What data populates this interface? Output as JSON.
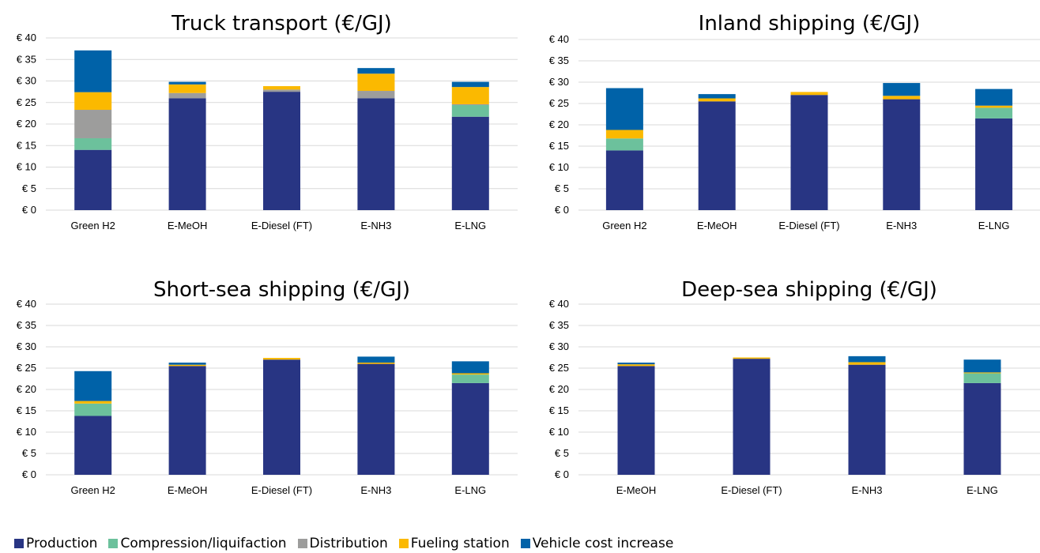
{
  "colors": {
    "Production": "#283583",
    "Compression/liquifaction": "#6cc19c",
    "Distribution": "#9d9d9c",
    "Fueling station": "#fbb900",
    "Vehicle cost increase": "#0062a8",
    "axis": "#d9d9d9"
  },
  "legend": {
    "items": [
      {
        "label": "Production",
        "color": "#283583"
      },
      {
        "label": "Compression/liquifaction",
        "color": "#6cc19c"
      },
      {
        "label": "Distribution",
        "color": "#9d9d9c"
      },
      {
        "label": "Fueling station",
        "color": "#fbb900"
      },
      {
        "label": "Vehicle cost increase",
        "color": "#0062a8"
      }
    ]
  },
  "chart_data": [
    {
      "type": "bar",
      "stacked": true,
      "title": "Truck transport (€/GJ)",
      "categories": [
        "Green H2",
        "E-MeOH",
        "E-Diesel (FT)",
        "E-NH3",
        "E-LNG"
      ],
      "ylim": [
        0,
        40
      ],
      "yticks": [
        "€ 0",
        "€ 5",
        "€ 10",
        "€ 15",
        "€ 20",
        "€ 25",
        "€ 30",
        "€ 35",
        "€ 40"
      ],
      "grid": true,
      "series": [
        {
          "name": "Production",
          "values": [
            14,
            26,
            27.5,
            26,
            21.7
          ]
        },
        {
          "name": "Compression/liquifaction",
          "values": [
            2.7,
            0,
            0,
            0,
            2.7
          ]
        },
        {
          "name": "Distribution",
          "values": [
            6.6,
            1.2,
            0.5,
            1.7,
            0.2
          ]
        },
        {
          "name": "Fueling station",
          "values": [
            4.1,
            2,
            0.8,
            4,
            4
          ]
        },
        {
          "name": "Vehicle cost increase",
          "values": [
            9.7,
            0.6,
            0,
            1.3,
            1.2
          ]
        }
      ]
    },
    {
      "type": "bar",
      "stacked": true,
      "title": "Inland shipping (€/GJ)",
      "categories": [
        "Green H2",
        "E-MeOH",
        "E-Diesel (FT)",
        "E-NH3",
        "E-LNG"
      ],
      "ylim": [
        0,
        40
      ],
      "yticks": [
        "€ 0",
        "€ 5",
        "€ 10",
        "€ 15",
        "€ 20",
        "€ 25",
        "€ 30",
        "€ 35",
        "€ 40"
      ],
      "grid": true,
      "series": [
        {
          "name": "Production",
          "values": [
            14,
            25.5,
            27,
            26,
            21.5
          ]
        },
        {
          "name": "Compression/liquifaction",
          "values": [
            2.8,
            0,
            0,
            0,
            2.5
          ]
        },
        {
          "name": "Distribution",
          "values": [
            0,
            0,
            0,
            0,
            0
          ]
        },
        {
          "name": "Fueling station",
          "values": [
            2,
            0.7,
            0.7,
            0.8,
            0.5
          ]
        },
        {
          "name": "Vehicle cost increase",
          "values": [
            9.8,
            1,
            0,
            3,
            3.9
          ]
        }
      ]
    },
    {
      "type": "bar",
      "stacked": true,
      "title": "Short-sea shipping (€/GJ)",
      "categories": [
        "Green H2",
        "E-MeOH",
        "E-Diesel (FT)",
        "E-NH3",
        "E-LNG"
      ],
      "ylim": [
        0,
        40
      ],
      "yticks": [
        "€ 0",
        "€ 5",
        "€ 10",
        "€ 15",
        "€ 20",
        "€ 25",
        "€ 30",
        "€ 35",
        "€ 40"
      ],
      "grid": true,
      "series": [
        {
          "name": "Production",
          "values": [
            13.8,
            25.5,
            27,
            26,
            21.5
          ]
        },
        {
          "name": "Compression/liquifaction",
          "values": [
            2.9,
            0,
            0,
            0,
            2
          ]
        },
        {
          "name": "Distribution",
          "values": [
            0,
            0,
            0,
            0,
            0
          ]
        },
        {
          "name": "Fueling station",
          "values": [
            0.6,
            0.3,
            0.4,
            0.3,
            0.3
          ]
        },
        {
          "name": "Vehicle cost increase",
          "values": [
            7,
            0.5,
            0,
            1.4,
            2.8
          ]
        }
      ]
    },
    {
      "type": "bar",
      "stacked": true,
      "title": "Deep-sea shipping  (€/GJ)",
      "categories": [
        "E-MeOH",
        "E-Diesel (FT)",
        "E-NH3",
        "E-LNG"
      ],
      "ylim": [
        0,
        40
      ],
      "yticks": [
        "€ 0",
        "€ 5",
        "€ 10",
        "€ 15",
        "€ 20",
        "€ 25",
        "€ 30",
        "€ 35",
        "€ 40"
      ],
      "grid": true,
      "series": [
        {
          "name": "Production",
          "values": [
            25.5,
            27.2,
            25.8,
            21.5
          ]
        },
        {
          "name": "Compression/liquifaction",
          "values": [
            0,
            0,
            0,
            2.3
          ]
        },
        {
          "name": "Distribution",
          "values": [
            0,
            0,
            0,
            0
          ]
        },
        {
          "name": "Fueling station",
          "values": [
            0.4,
            0.3,
            0.6,
            0.2
          ]
        },
        {
          "name": "Vehicle cost increase",
          "values": [
            0.4,
            0,
            1.4,
            3
          ]
        }
      ]
    }
  ]
}
